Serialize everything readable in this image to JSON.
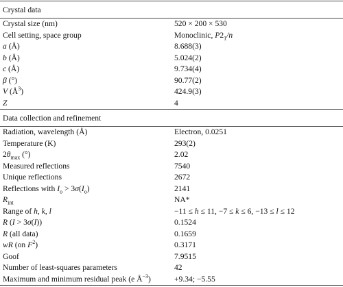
{
  "sections": [
    {
      "title": "Crystal data",
      "rows": [
        {
          "label": [
            "Crystal size (nm)"
          ],
          "value": [
            "520 × 200 × 530"
          ]
        },
        {
          "label": [
            "Cell setting, space group"
          ],
          "value": [
            "Monoclinic, ",
            {
              "i": "P"
            },
            "2",
            {
              "sub": "1"
            },
            {
              "i": "/n"
            }
          ]
        },
        {
          "label": [
            {
              "i": "a"
            },
            " (Å)"
          ],
          "value": [
            "8.688(3)"
          ]
        },
        {
          "label": [
            {
              "i": "b"
            },
            " (Å)"
          ],
          "value": [
            "5.024(2)"
          ]
        },
        {
          "label": [
            {
              "i": "c"
            },
            " (Å)"
          ],
          "value": [
            "9.734(4)"
          ]
        },
        {
          "label": [
            {
              "i": "β"
            },
            " (°)"
          ],
          "value": [
            "90.77(2)"
          ]
        },
        {
          "label": [
            {
              "i": "V"
            },
            " (Å",
            {
              "sup": "3"
            },
            ")"
          ],
          "value": [
            "424.9(3)"
          ]
        },
        {
          "label": [
            {
              "i": "Z"
            }
          ],
          "value": [
            "4"
          ]
        }
      ]
    },
    {
      "title": "Data collection and refinement",
      "rows": [
        {
          "label": [
            "Radiation, wavelength (Å)"
          ],
          "value": [
            "Electron, 0.0251"
          ]
        },
        {
          "label": [
            "Temperature (K)"
          ],
          "value": [
            "293(2)"
          ]
        },
        {
          "label": [
            "2",
            {
              "i": "θ"
            },
            {
              "sub": "max"
            },
            " (°)"
          ],
          "value": [
            "2.02"
          ]
        },
        {
          "label": [
            "Measured reflections"
          ],
          "value": [
            "7540"
          ]
        },
        {
          "label": [
            "Unique reflections"
          ],
          "value": [
            "2672"
          ]
        },
        {
          "label": [
            "Reflections with ",
            {
              "i": "I"
            },
            {
              "sub": "o"
            },
            " > 3",
            {
              "i": "σ"
            },
            "(",
            {
              "i": "I"
            },
            {
              "sub": "o"
            },
            ")"
          ],
          "value": [
            "2141"
          ]
        },
        {
          "label": [
            {
              "i": "R"
            },
            {
              "sub": "int"
            }
          ],
          "value": [
            "NA*"
          ]
        },
        {
          "label": [
            "Range of ",
            {
              "i": "h"
            },
            ", ",
            {
              "i": "k"
            },
            ", ",
            {
              "i": "l"
            }
          ],
          "value": [
            "−11 ≤ ",
            {
              "i": "h"
            },
            " ≤ 11, −7 ≤ ",
            {
              "i": "k"
            },
            " ≤ 6, −13 ≤ ",
            {
              "i": "l"
            },
            " ≤ 12"
          ]
        },
        {
          "label": [
            {
              "i": "R"
            },
            " (",
            {
              "i": "I"
            },
            " > 3",
            {
              "i": "σ"
            },
            "(",
            {
              "i": "I"
            },
            "))"
          ],
          "value": [
            "0.1524"
          ]
        },
        {
          "label": [
            {
              "i": "R"
            },
            " (all data)"
          ],
          "value": [
            "0.1659"
          ]
        },
        {
          "label": [
            {
              "i": "wR"
            },
            " (on ",
            {
              "i": "F"
            },
            {
              "sup": "2"
            },
            ")"
          ],
          "value": [
            "0.3171"
          ]
        },
        {
          "label": [
            "Goof"
          ],
          "value": [
            "7.9515"
          ]
        },
        {
          "label": [
            "Number of least-squares parameters"
          ],
          "value": [
            "42"
          ]
        },
        {
          "label": [
            "Maximum and minimum residual peak (e Å",
            {
              "sup": "−3"
            },
            ")"
          ],
          "value": [
            "+9.34; −5.55"
          ]
        }
      ]
    }
  ]
}
